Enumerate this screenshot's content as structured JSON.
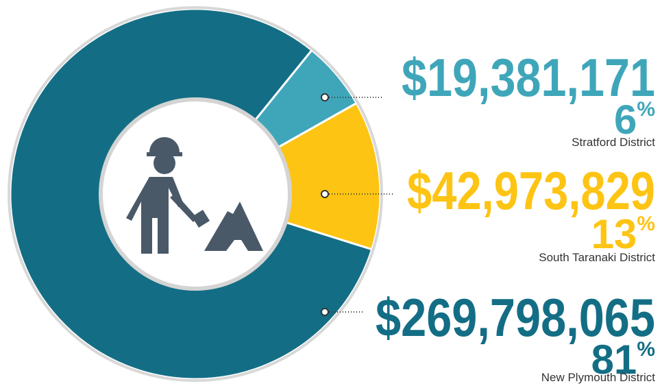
{
  "chart_data": {
    "type": "pie",
    "donut": true,
    "categories": [
      "Stratford District",
      "South Taranaki District",
      "New Plymouth District"
    ],
    "values": [
      6,
      13,
      81
    ],
    "value_labels": [
      "6%",
      "13%",
      "81%"
    ],
    "amount_labels": [
      "$19,381,171",
      "$42,973,829",
      "$269,798,065"
    ],
    "colors": [
      "#3fa6ba",
      "#fdc413",
      "#136e85"
    ]
  }
}
